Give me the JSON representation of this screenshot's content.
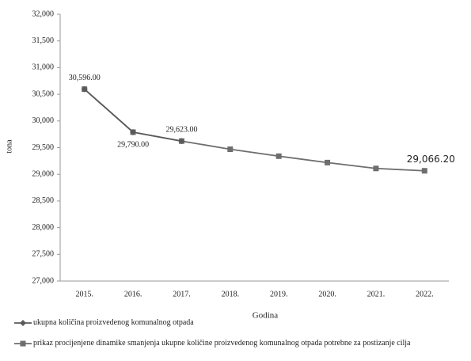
{
  "chart_data": {
    "type": "line",
    "x_label": "Godina",
    "y_label": "tona",
    "categories": [
      "2015.",
      "2016.",
      "2017.",
      "2018.",
      "2019.",
      "2020.",
      "2021.",
      "2022."
    ],
    "series": [
      {
        "name": "ukupna količina proizvedenog komunalnog otpada",
        "color": "#5a5a5a",
        "marker": "diamond",
        "values": [
          30596,
          29790,
          29623,
          null,
          null,
          null,
          null,
          null
        ],
        "value_labels": [
          "30,596.00",
          "29,790.00",
          "29,623.00",
          null,
          null,
          null,
          null,
          null
        ]
      },
      {
        "name": "prikaz procijenjene  dinamike smanjenja ukupne količine proizvedenog komunalnog otpada potrebne za postizanje cilja",
        "color": "#6e6e6e",
        "marker": "square",
        "values": [
          30596,
          29790,
          29623,
          29470,
          29340,
          29220,
          29110,
          29066.2
        ],
        "value_labels": [
          null,
          null,
          null,
          null,
          null,
          null,
          null,
          "29,066.20"
        ]
      }
    ],
    "ylim": [
      27000,
      32000
    ],
    "yticks": [
      {
        "value": 27000,
        "label": "27,000"
      },
      {
        "value": 27500,
        "label": "27,500"
      },
      {
        "value": 28000,
        "label": "28,000"
      },
      {
        "value": 28500,
        "label": "28,500"
      },
      {
        "value": 29000,
        "label": "29,000"
      },
      {
        "value": 29500,
        "label": "29,500"
      },
      {
        "value": 30000,
        "label": "30,000"
      },
      {
        "value": 30500,
        "label": "30,500"
      },
      {
        "value": 31000,
        "label": "31,000"
      },
      {
        "value": 31500,
        "label": "31,500"
      },
      {
        "value": 32000,
        "label": "32,000"
      }
    ],
    "grid": false,
    "legend": "bottom"
  }
}
